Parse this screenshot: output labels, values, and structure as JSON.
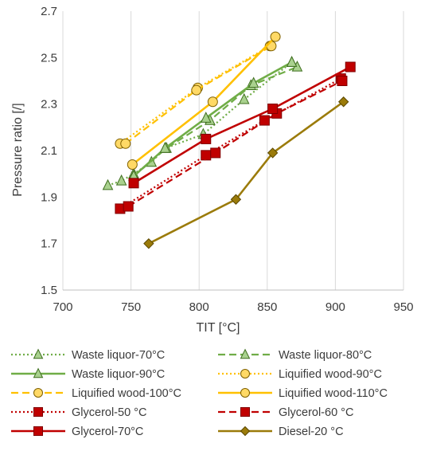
{
  "chart_data": {
    "type": "line",
    "title": "",
    "xlabel": "TIT [°C]",
    "ylabel": "Pressure ratio [/]",
    "xlim": [
      700,
      950
    ],
    "ylim": [
      1.5,
      2.7
    ],
    "x_ticks": [
      700,
      750,
      800,
      850,
      900,
      950
    ],
    "y_ticks": [
      1.5,
      1.7,
      1.9,
      2.1,
      2.3,
      2.5,
      2.7
    ],
    "x_tick_labels": [
      "700",
      "750",
      "800",
      "850",
      "900",
      "950"
    ],
    "y_tick_labels": [
      "1.5",
      "1.7",
      "1.9",
      "2.1",
      "2.3",
      "2.5",
      "2.7"
    ],
    "grid": "vertical",
    "legend_position": "bottom",
    "series": [
      {
        "name": "Waste liquor-70°C",
        "color": "#70ad47",
        "line_style": "dotted",
        "marker": "triangle",
        "x": [
          733,
          743,
          752,
          765,
          775,
          803,
          833,
          868
        ],
        "y": [
          1.95,
          1.97,
          2.0,
          2.05,
          2.11,
          2.17,
          2.32,
          2.48
        ]
      },
      {
        "name": "Waste liquor-80°C",
        "color": "#70ad47",
        "line_style": "dashed",
        "marker": "triangle",
        "x": [
          752,
          776,
          808,
          838,
          872
        ],
        "y": [
          1.99,
          2.11,
          2.23,
          2.38,
          2.46
        ]
      },
      {
        "name": "Waste liquor-90°C",
        "color": "#70ad47",
        "line_style": "solid",
        "marker": "triangle",
        "x": [
          752,
          775,
          805,
          840,
          868
        ],
        "y": [
          1.99,
          2.11,
          2.24,
          2.39,
          2.48
        ]
      },
      {
        "name": "Liquified wood-90°C",
        "color": "#ffc000",
        "line_style": "dotted",
        "marker": "circle",
        "x": [
          742,
          799,
          852
        ],
        "y": [
          2.13,
          2.37,
          2.55
        ]
      },
      {
        "name": "Liquified wood-100°C",
        "color": "#ffc000",
        "line_style": "dashed",
        "marker": "circle",
        "x": [
          746,
          798,
          853
        ],
        "y": [
          2.13,
          2.36,
          2.55
        ]
      },
      {
        "name": "Liquified wood-110°C",
        "color": "#ffc000",
        "line_style": "solid",
        "marker": "circle",
        "x": [
          751,
          810,
          856
        ],
        "y": [
          2.04,
          2.31,
          2.59
        ]
      },
      {
        "name": "Glycerol-50 °C",
        "color": "#c00000",
        "line_style": "dotted",
        "marker": "square",
        "x": [
          742,
          805,
          848,
          904
        ],
        "y": [
          1.85,
          2.08,
          2.23,
          2.41
        ]
      },
      {
        "name": "Glycerol-60 °C",
        "color": "#c00000",
        "line_style": "dashed",
        "marker": "square",
        "x": [
          748,
          812,
          857,
          905
        ],
        "y": [
          1.86,
          2.09,
          2.26,
          2.4
        ]
      },
      {
        "name": "Glycerol-70°C",
        "color": "#c00000",
        "line_style": "solid",
        "marker": "square",
        "x": [
          752,
          805,
          854,
          911
        ],
        "y": [
          1.96,
          2.15,
          2.28,
          2.46
        ]
      },
      {
        "name": "Diesel-20 °C",
        "color": "#9b7b0a",
        "line_style": "solid",
        "marker": "diamond",
        "x": [
          763,
          827,
          854,
          906
        ],
        "y": [
          1.7,
          1.89,
          2.09,
          2.31
        ]
      }
    ]
  }
}
